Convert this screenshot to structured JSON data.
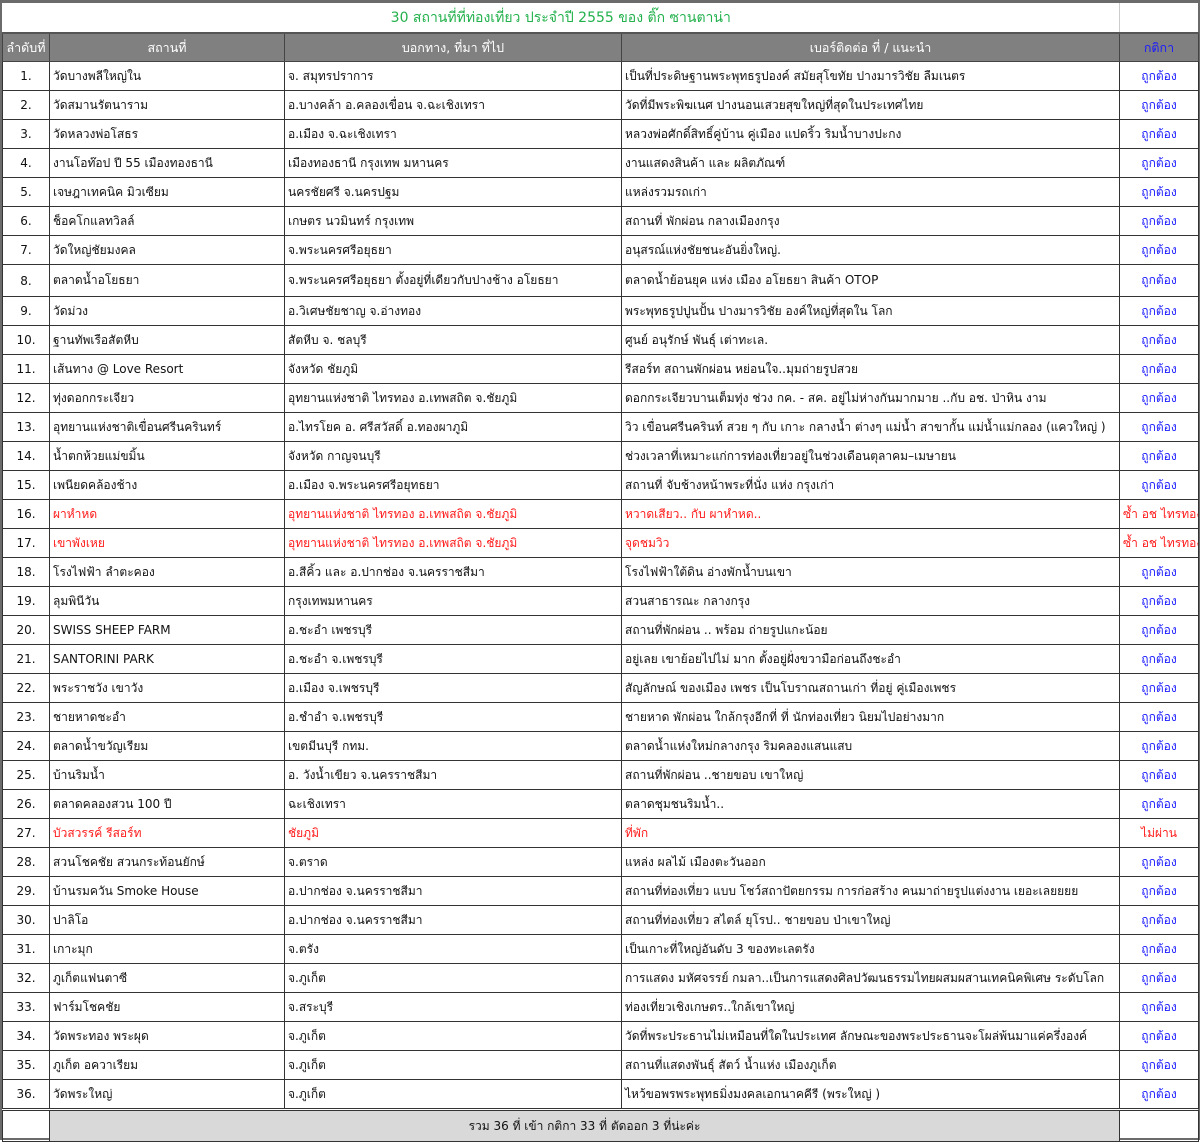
{
  "title": "30 สถานที่ที่ท่องเที่ยว ประจำปี 2555 ของ ติ๊ก ซานตาน่า",
  "headers": [
    "ลำดับที่",
    "สถานที่",
    "บอกทาง, ที่มา ที่ไป",
    "เบอร์ติดต่อ ที่ / แนะนำ",
    "กติกา"
  ],
  "colors": {
    "title": "#22b14c",
    "header_bg": "#808080",
    "ok": "#1a1aff",
    "rejected": "#ff1a1a"
  },
  "rows": [
    {
      "no": "1.",
      "place": "วัดบางพลีใหญ่ใน",
      "direction": "จ. สมุทรปราการ",
      "note": "เป็นที่ประดิษฐานพระพุทธรูปองค์ สมัยสุโขทัย ปางมารวิชัย ลืมเนตร",
      "status": "ถูกต้อง",
      "flag": ""
    },
    {
      "no": "2.",
      "place": "วัดสมานรัตนาราม",
      "direction": "อ.บางคล้า อ.คลองเขื่อน จ.ฉะเชิงเทรา",
      "note": "วัดที่มีพระพิฆเนศ ปางนอนเสวยสุขใหญ่ที่สุดในประเทศไทย",
      "status": "ถูกต้อง",
      "flag": ""
    },
    {
      "no": "3.",
      "place": "วัดหลวงพ่อโสธร",
      "direction": "อ.เมือง จ.ฉะเชิงเทรา",
      "note": "หลวงพ่อศักดิ์สิทธิ์คู่บ้าน คู่เมือง แปดริ้ว ริมน้ำบางปะกง",
      "status": "ถูกต้อง",
      "flag": ""
    },
    {
      "no": "4.",
      "place": "งานโอท๊อป ปี 55 เมืองทองธานี",
      "direction": "เมืองทองธานี กรุงเทพ มหานคร",
      "note": "งานแสดงสินค้า และ ผลิตภัณฑ์",
      "status": "ถูกต้อง",
      "flag": ""
    },
    {
      "no": "5.",
      "place": "เจษฎาเทคนิค มิวเซียม",
      "direction": "นครชัยศรี จ.นครปฐม",
      "note": "แหล่งรวมรถเก่า",
      "status": "ถูกต้อง",
      "flag": ""
    },
    {
      "no": "6.",
      "place": "ช็อคโกแลทวิลล์",
      "direction": "เกษตร นวมินทร์ กรุงเทพ",
      "note": "สถานที่ พักผ่อน กลางเมืองกรุง",
      "status": "ถูกต้อง",
      "flag": ""
    },
    {
      "no": "7.",
      "place": "วัดใหญ่ชัยมงคล",
      "direction": "จ.พระนครศรีอยุธยา",
      "note": "อนุสรณ์แห่งชัยชนะอันยิ่งใหญ่.",
      "status": "ถูกต้อง",
      "flag": ""
    },
    {
      "no": "8.",
      "place": "ตลาดน้ำอโยธยา",
      "direction": "จ.พระนครศรีอยุธยา  ตั้งอยู่ที่เดียวกับปางช้าง อโยธยา",
      "note": "ตลาดน้ำย้อนยุค แห่ง เมือง อโยธยา สินค้า OTOP",
      "status": "ถูกต้อง",
      "flag": "tall"
    },
    {
      "no": "9.",
      "place": "วัดม่วง",
      "direction": "อ.วิเศษชัยชาญ  จ.อ่างทอง",
      "note": "พระพุทธรูปปูนปั้น ปางมารวิชัย องค์ใหญ่ที่สุดใน โลก",
      "status": "ถูกต้อง",
      "flag": ""
    },
    {
      "no": "10.",
      "place": "ฐานทัพเรือสัตหีบ",
      "direction": " สัตหีบ จ. ชลบุรี",
      "note": "ศูนย์ อนุรักษ์ พันธุ์ เต่าทะเล.",
      "status": "ถูกต้อง",
      "flag": ""
    },
    {
      "no": "11.",
      "place": "เส้นทาง @ Love Resort",
      "direction": "จังหวัด ชัยภูมิ",
      "note": "รีสอร์ท สถานพักผ่อน หย่อนใจ..มุมถ่ายรูปสวย",
      "status": "ถูกต้อง",
      "flag": ""
    },
    {
      "no": "12.",
      "place": "ทุ่งดอกกระเจียว",
      "direction": "อุทยานแห่งชาติ ไทรทอง อ.เทพสถิต จ.ชัยภูมิ",
      "note": "ดอกกระเจียวบานเต็มทุ่ง ช่วง กค. - สค.  อยู่ไม่ห่างกันมากมาย ..กับ อช. ป่าหิน งาม",
      "status": "ถูกต้อง",
      "flag": ""
    },
    {
      "no": "13.",
      "place": "อุทยานแห่งชาติเขื่อนศรีนครินทร์",
      "direction": "อ.ไทรโยค อ. ศรีสวัสดิ์ อ.ทองผาภูมิ",
      "note": "วิว เขื่อนศรีนครินท์ สวย ๆ กับ เกาะ กลางน้ำ ต่างๆ แม่น้ำ สาขากั้น แม่น้ำแม่กลอง (แควใหญ่ )",
      "status": "ถูกต้อง",
      "flag": ""
    },
    {
      "no": "14.",
      "place": "น้ำตกห้วยแม่ขมิ้น",
      "direction": "จังหวัด กาญจนบุรี",
      "note": "ช่วงเวลาที่เหมาะแก่การท่องเที่ยวอยู่ในช่วงเดือนตุลาคม–เมษายน",
      "status": "ถูกต้อง",
      "flag": ""
    },
    {
      "no": "15.",
      "place": "เพนียดคล้องช้าง",
      "direction": "อ.เมือง จ.พระนครศรีอยุทธยา",
      "note": "สถานที่ จับช้างหน้าพระที่นั่ง แห่ง กรุงเก่า",
      "status": "ถูกต้อง",
      "flag": ""
    },
    {
      "no": "16.",
      "place": "ผาหำหด",
      "direction": "อุทยานแห่งชาติ ไทรทอง อ.เทพสถิต จ.ชัยภูมิ",
      "note": "หวาดเสียว.. กับ ผาหำหด..",
      "status": "ซ้ำ อช ไทรทอง",
      "flag": "red"
    },
    {
      "no": "17.",
      "place": "เขาพังเหย",
      "direction": "อุทยานแห่งชาติ ไทรทอง อ.เทพสถิต จ.ชัยภูมิ",
      "note": "จุดชมวิว",
      "status": "ซ้ำ อช ไทรทอง",
      "flag": "red"
    },
    {
      "no": "18.",
      "place": "โรงไฟฟ้า ลำตะคอง",
      "direction": "อ.สีคิ้ว และ อ.ปากช่อง จ.นครราชสีมา",
      "note": "โรงไฟฟ้าใต้ดิน อ่างพักน้ำบนเขา",
      "status": "ถูกต้อง",
      "flag": ""
    },
    {
      "no": "19.",
      "place": "ลุมพินีวัน",
      "direction": "กรุงเทพมหานคร",
      "note": "สวนสาธารณะ กลางกรุง",
      "status": "ถูกต้อง",
      "flag": ""
    },
    {
      "no": "20.",
      "place": "SWISS SHEEP FARM",
      "direction": "อ.ชะอำ เพชรบุรี",
      "note": "สถานที่พักผ่อน .. พร้อม ถ่ายรูปแกะน้อย",
      "status": "ถูกต้อง",
      "flag": ""
    },
    {
      "no": "21.",
      "place": "SANTORINI PARK",
      "direction": "อ.ชะอำ จ.เพชรบุรี",
      "note": "อยู่เลย เขาย้อยไปไม่ มาก ตั้งอยู่ฝั่งขวามือก่อนถึงชะอำ",
      "status": "ถูกต้อง",
      "flag": ""
    },
    {
      "no": "22.",
      "place": "พระราชวัง เขาวัง",
      "direction": "อ.เมือง จ.เพชรบุรี",
      "note": "สัญลักษณ์ ของเมือง เพชร  เป็นโบราณสถานเก่า ที่อยู่ คู่เมืองเพชร",
      "status": "ถูกต้อง",
      "flag": ""
    },
    {
      "no": "23.",
      "place": "ชายหาดชะอำ",
      "direction": "อ.ชำอำ จ.เพชรบุรี",
      "note": "ชายหาด พักผ่อน ใกล้กรุงอีกที่ ที่ นักท่องเที่ยว นิยมไปอย่างมาก",
      "status": "ถูกต้อง",
      "flag": ""
    },
    {
      "no": "24.",
      "place": "ตลาดน้ำขวัญเรียม",
      "direction": "เขตมีนบุรี กทม.",
      "note": "ตลาดน้ำแห่งใหม่กลางกรุง ริมคลองแสนแสบ",
      "status": "ถูกต้อง",
      "flag": ""
    },
    {
      "no": "25.",
      "place": "บ้านริมน้ำ",
      "direction": "อ. วังน้ำเขียว จ.นครราชสีมา",
      "note": "สถานที่พักผ่อน ..ชายขอบ เขาใหญ่",
      "status": "ถูกต้อง",
      "flag": ""
    },
    {
      "no": "26.",
      "place": "ตลาดคลองสวน 100 ปี",
      "direction": "ฉะเชิงเทรา",
      "note": "ตลาดชุมชนริมน้ำ..",
      "status": "ถูกต้อง",
      "flag": ""
    },
    {
      "no": "27.",
      "place": "บัวสวรรค์ รีสอร์ท",
      "direction": "ชัยภูมิ",
      "note": "ที่พัก",
      "status": "ไม่ผ่าน",
      "flag": "red"
    },
    {
      "no": "28.",
      "place": "สวนโชคชัย สวนกระท้อนยักษ์",
      "direction": "จ.ตราด",
      "note": "แหล่ง ผลไม้ เมืองตะวันออก",
      "status": "ถูกต้อง",
      "flag": ""
    },
    {
      "no": "29.",
      "place": "บ้านรมควัน Smoke House",
      "direction": "อ.ปากช่อง จ.นครราชสีมา",
      "note": "สถานที่ท่องเที่ยว แบบ โชว์สถาปัตยกรรม การก่อสร้าง  คนมาถ่ายรูปแต่งงาน เยอะเลยยยย",
      "status": "ถูกต้อง",
      "flag": ""
    },
    {
      "no": "30.",
      "place": "ปาลิโอ",
      "direction": "อ.ปากช่อง จ.นครราชสีมา",
      "note": "สถานที่ท่องเที่ยว สไตล์ ยุโรป.. ชายขอบ ป่าเขาใหญ่",
      "status": "ถูกต้อง",
      "flag": ""
    },
    {
      "no": "31.",
      "place": "เกาะมุก",
      "direction": "จ.ตรัง",
      "note": "เป็นเกาะที่ใหญ่อันดับ 3 ของทะเลตรัง",
      "status": "ถูกต้อง",
      "flag": ""
    },
    {
      "no": "32.",
      "place": "ภูเก็ตแฟนตาซี",
      "direction": "จ.ภูเก็ต",
      "note": "การแสดง มหัศจรรย์ กมลา..เป็นการแสดงศิลปวัฒนธรรมไทยผสมผสานเทคนิคพิเศษ ระดับโลก",
      "status": "ถูกต้อง",
      "flag": ""
    },
    {
      "no": "33.",
      "place": "ฟาร์มโชคชัย",
      "direction": "จ.สระบุรี",
      "note": "ท่องเที่ยวเชิงเกษตร..ใกล้เขาใหญ่",
      "status": "ถูกต้อง",
      "flag": ""
    },
    {
      "no": "34.",
      "place": "วัดพระทอง พระผุด",
      "direction": "จ.ภูเก็ต",
      "note": " วัดที่พระประธานไม่เหมือนที่ใดในประเทศ ลักษณะของพระประธานจะโผล่พ้นมาแค่ครึ่งองค์",
      "status": "ถูกต้อง",
      "flag": ""
    },
    {
      "no": "35.",
      "place": "ภูเก็ต อควาเรียม",
      "direction": "จ.ภูเก็ต",
      "note": "สถานที่แสดงพันธุ์ สัตว์ น้ำแห่ง เมืองภูเก็ต",
      "status": "ถูกต้อง",
      "flag": ""
    },
    {
      "no": "36.",
      "place": "วัดพระใหญ่",
      "direction": "จ.ภูเก็ต",
      "note": "ไหว้ขอพรพระพุทธมิ่งมงคลเอกนาคคีรี (พระใหญ่ )",
      "status": "ถูกต้อง",
      "flag": ""
    }
  ],
  "footer": "รวม 36 ที่  เข้า กติกา 33 ที่ ตัดออก 3 ที่น่ะค่ะ"
}
